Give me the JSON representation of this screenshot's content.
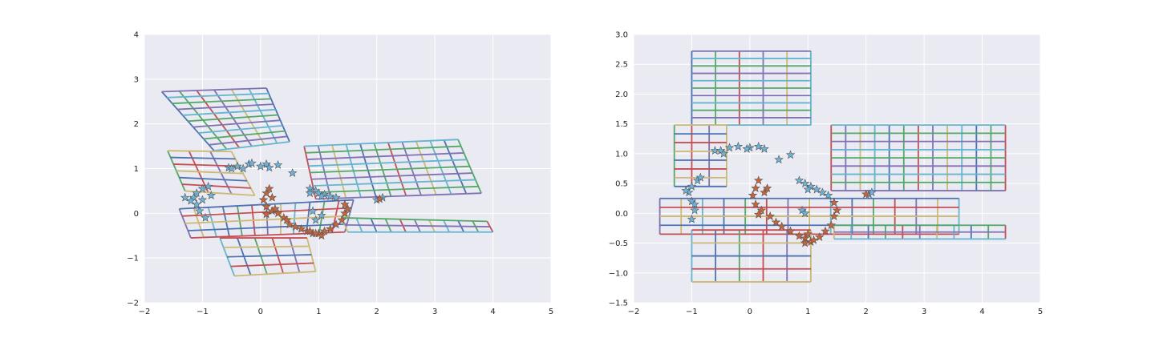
{
  "palette": [
    "#4c72b0",
    "#55a868",
    "#c44e52",
    "#8172b2",
    "#ccb974",
    "#64b5cd"
  ],
  "star_colors": {
    "blue": "#6fb3d9",
    "orange": "#c8643a"
  },
  "chart_data": [
    {
      "type": "line",
      "title": "",
      "xlabel": "",
      "ylabel": "",
      "xlim": [
        -2,
        5
      ],
      "ylim": [
        -2,
        4
      ],
      "xticks": [
        -2,
        -1,
        0,
        1,
        2,
        3,
        4,
        5
      ],
      "yticks": [
        -2,
        -1,
        0,
        1,
        2,
        3,
        4
      ],
      "xtick_labels": [
        "−2",
        "−1",
        "0",
        "1",
        "2",
        "3",
        "4",
        "5"
      ],
      "ytick_labels": [
        "−2",
        "−1",
        "0",
        "1",
        "2",
        "3",
        "4"
      ],
      "grid": true,
      "meshes": [
        {
          "corners": [
            [
              -1.7,
              2.72
            ],
            [
              0.1,
              2.8
            ],
            [
              -0.8,
              1.4
            ],
            [
              0.5,
              1.6
            ]
          ],
          "nu": 6,
          "nv": 10
        },
        {
          "corners": [
            [
              -1.6,
              1.4
            ],
            [
              -0.5,
              1.38
            ],
            [
              -1.3,
              0.5
            ],
            [
              -0.1,
              0.4
            ]
          ],
          "nu": 3,
          "nv": 6
        },
        {
          "corners": [
            [
              0.75,
              1.5
            ],
            [
              3.4,
              1.65
            ],
            [
              0.95,
              0.32
            ],
            [
              3.8,
              0.45
            ]
          ],
          "nu": 11,
          "nv": 8
        },
        {
          "corners": [
            [
              -1.4,
              0.1
            ],
            [
              1.6,
              0.3
            ],
            [
              -1.2,
              -0.55
            ],
            [
              1.45,
              -0.42
            ]
          ],
          "nu": 12,
          "nv": 4
        },
        {
          "corners": [
            [
              1.4,
              -0.1
            ],
            [
              3.9,
              -0.18
            ],
            [
              1.5,
              -0.42
            ],
            [
              4.0,
              -0.42
            ]
          ],
          "nu": 10,
          "nv": 2
        },
        {
          "corners": [
            [
              -0.7,
              -0.55
            ],
            [
              0.8,
              -0.55
            ],
            [
              -0.45,
              -1.4
            ],
            [
              0.95,
              -1.3
            ]
          ],
          "nu": 5,
          "nv": 4
        }
      ],
      "stars_blue": [
        [
          -0.55,
          1.02
        ],
        [
          -0.5,
          1.0
        ],
        [
          -0.3,
          1.0
        ],
        [
          -0.4,
          1.05
        ],
        [
          -0.2,
          1.1
        ],
        [
          0.0,
          1.05
        ],
        [
          0.1,
          1.1
        ],
        [
          0.3,
          1.08
        ],
        [
          0.15,
          1.02
        ],
        [
          0.55,
          0.9
        ],
        [
          -0.15,
          1.12
        ],
        [
          -1.0,
          0.55
        ],
        [
          -1.1,
          0.45
        ],
        [
          -1.15,
          0.35
        ],
        [
          -1.1,
          0.2
        ],
        [
          -1.05,
          0.05
        ],
        [
          -0.95,
          -0.1
        ],
        [
          -1.0,
          0.3
        ],
        [
          -0.9,
          0.6
        ],
        [
          -1.2,
          0.28
        ],
        [
          0.85,
          0.55
        ],
        [
          0.95,
          0.5
        ],
        [
          1.0,
          0.45
        ],
        [
          1.1,
          0.42
        ],
        [
          1.2,
          0.38
        ],
        [
          0.9,
          0.05
        ],
        [
          1.3,
          0.35
        ],
        [
          1.05,
          0.38
        ],
        [
          0.85,
          0.45
        ],
        [
          0.95,
          -0.15
        ],
        [
          2.1,
          0.35
        ],
        [
          2.0,
          0.3
        ],
        [
          -1.3,
          0.35
        ],
        [
          -0.85,
          0.4
        ],
        [
          1.05,
          -0.05
        ]
      ],
      "stars_orange": [
        [
          0.15,
          0.55
        ],
        [
          0.1,
          0.45
        ],
        [
          0.05,
          0.3
        ],
        [
          0.1,
          0.15
        ],
        [
          0.2,
          0.05
        ],
        [
          0.3,
          0.0
        ],
        [
          0.4,
          -0.1
        ],
        [
          0.45,
          -0.15
        ],
        [
          0.5,
          -0.25
        ],
        [
          0.6,
          -0.3
        ],
        [
          0.7,
          -0.35
        ],
        [
          0.8,
          -0.4
        ],
        [
          0.9,
          -0.45
        ],
        [
          1.0,
          -0.45
        ],
        [
          1.05,
          -0.5
        ],
        [
          1.1,
          -0.4
        ],
        [
          1.2,
          -0.35
        ],
        [
          1.3,
          -0.25
        ],
        [
          1.4,
          -0.15
        ],
        [
          1.45,
          0.0
        ],
        [
          1.5,
          0.1
        ],
        [
          1.45,
          0.2
        ],
        [
          0.2,
          0.35
        ],
        [
          0.1,
          -0.02
        ],
        [
          0.25,
          0.1
        ],
        [
          2.05,
          0.32
        ],
        [
          0.85,
          -0.4
        ],
        [
          0.95,
          -0.45
        ]
      ]
    },
    {
      "type": "line",
      "title": "",
      "xlabel": "",
      "ylabel": "",
      "xlim": [
        -2,
        5
      ],
      "ylim": [
        -1.5,
        3.0
      ],
      "xticks": [
        -2,
        -1,
        0,
        1,
        2,
        3,
        4,
        5
      ],
      "yticks": [
        -1.5,
        -1.0,
        -0.5,
        0.0,
        0.5,
        1.0,
        1.5,
        2.0,
        2.5,
        3.0
      ],
      "xtick_labels": [
        "−2",
        "−1",
        "0",
        "1",
        "2",
        "3",
        "4",
        "5"
      ],
      "ytick_labels": [
        "−1.5",
        "−1.0",
        "−0.5",
        "0.0",
        "0.5",
        "1.0",
        "1.5",
        "2.0",
        "2.5",
        "3.0"
      ],
      "grid": true,
      "meshes": [
        {
          "corners": [
            [
              -1.0,
              2.72
            ],
            [
              1.05,
              2.72
            ],
            [
              -1.0,
              1.48
            ],
            [
              1.05,
              1.48
            ]
          ],
          "nu": 5,
          "nv": 10
        },
        {
          "corners": [
            [
              -1.3,
              1.48
            ],
            [
              -0.4,
              1.48
            ],
            [
              -1.3,
              0.45
            ],
            [
              -0.4,
              0.45
            ]
          ],
          "nu": 3,
          "nv": 7
        },
        {
          "corners": [
            [
              1.4,
              1.48
            ],
            [
              4.4,
              1.48
            ],
            [
              1.4,
              0.38
            ],
            [
              4.4,
              0.38
            ]
          ],
          "nu": 12,
          "nv": 8
        },
        {
          "corners": [
            [
              -1.55,
              0.25
            ],
            [
              3.6,
              0.25
            ],
            [
              -1.55,
              -0.35
            ],
            [
              3.6,
              -0.35
            ]
          ],
          "nu": 14,
          "nv": 4
        },
        {
          "corners": [
            [
              1.45,
              -0.2
            ],
            [
              4.4,
              -0.2
            ],
            [
              1.45,
              -0.43
            ],
            [
              4.4,
              -0.43
            ]
          ],
          "nu": 10,
          "nv": 2
        },
        {
          "corners": [
            [
              -1.0,
              -0.28
            ],
            [
              1.05,
              -0.28
            ],
            [
              -1.0,
              -1.15
            ],
            [
              1.05,
              -1.15
            ]
          ],
          "nu": 5,
          "nv": 4
        }
      ],
      "stars_blue": [
        [
          -0.6,
          1.05
        ],
        [
          -0.5,
          1.05
        ],
        [
          -0.35,
          1.1
        ],
        [
          -0.2,
          1.12
        ],
        [
          0.0,
          1.1
        ],
        [
          0.15,
          1.12
        ],
        [
          0.25,
          1.08
        ],
        [
          0.5,
          0.9
        ],
        [
          0.7,
          0.98
        ],
        [
          -0.45,
          1.0
        ],
        [
          -0.05,
          1.08
        ],
        [
          -0.9,
          0.55
        ],
        [
          -1.0,
          0.45
        ],
        [
          -1.05,
          0.35
        ],
        [
          -1.0,
          0.2
        ],
        [
          -0.95,
          0.05
        ],
        [
          -1.0,
          -0.1
        ],
        [
          -0.85,
          0.6
        ],
        [
          -1.1,
          0.38
        ],
        [
          0.85,
          0.55
        ],
        [
          0.95,
          0.5
        ],
        [
          1.05,
          0.45
        ],
        [
          1.15,
          0.4
        ],
        [
          1.25,
          0.35
        ],
        [
          1.35,
          0.3
        ],
        [
          0.9,
          0.05
        ],
        [
          0.95,
          0.0
        ],
        [
          2.05,
          0.32
        ],
        [
          2.1,
          0.35
        ],
        [
          -0.95,
          0.15
        ],
        [
          1.0,
          0.4
        ]
      ],
      "stars_orange": [
        [
          0.15,
          0.55
        ],
        [
          0.1,
          0.42
        ],
        [
          0.05,
          0.3
        ],
        [
          0.1,
          0.15
        ],
        [
          0.2,
          0.05
        ],
        [
          0.35,
          -0.05
        ],
        [
          0.45,
          -0.15
        ],
        [
          0.55,
          -0.22
        ],
        [
          0.7,
          -0.3
        ],
        [
          0.85,
          -0.38
        ],
        [
          0.95,
          -0.42
        ],
        [
          1.05,
          -0.48
        ],
        [
          1.1,
          -0.45
        ],
        [
          1.2,
          -0.4
        ],
        [
          1.3,
          -0.3
        ],
        [
          1.4,
          -0.2
        ],
        [
          1.45,
          -0.05
        ],
        [
          1.5,
          0.05
        ],
        [
          1.45,
          0.18
        ],
        [
          0.25,
          0.35
        ],
        [
          0.3,
          0.42
        ],
        [
          2.0,
          0.32
        ],
        [
          0.15,
          -0.02
        ],
        [
          0.95,
          -0.5
        ],
        [
          1.0,
          -0.35
        ]
      ]
    }
  ]
}
